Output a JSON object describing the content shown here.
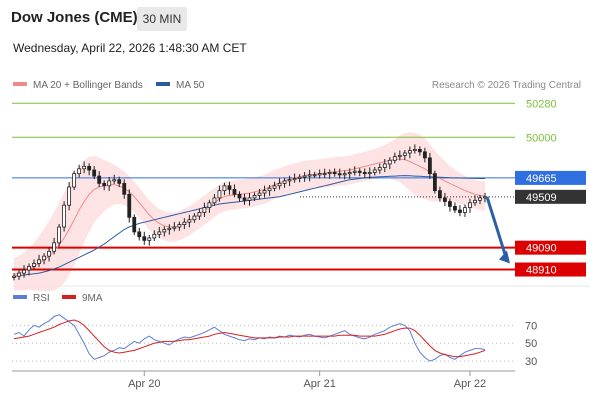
{
  "header": {
    "title": "Dow Jones (CME)",
    "timeframe": "30 MIN",
    "datetime": "Wednesday, April 22, 2026 1:48:30 AM CET"
  },
  "legend": {
    "ma20": "MA 20 + Bollinger Bands",
    "ma50": "MA 50",
    "ma20_color": "#f08a8a",
    "ma50_color": "#2c5aa0",
    "copyright": "Research © 2026 Trading Central"
  },
  "rsi_legend": {
    "rsi": "RSI",
    "ma9": "9MA",
    "rsi_color": "#5b7fd6",
    "ma9_color": "#d62020"
  },
  "chart_data": [
    {
      "type": "candlestick",
      "title": "",
      "ylim": [
        48840,
        50340
      ],
      "x_ticks": [
        "Apr 20",
        "Apr 21",
        "Apr 22"
      ],
      "levels": [
        {
          "value": 50280,
          "label": "50280",
          "color": "#7cbf3c",
          "style": "line",
          "badge": false
        },
        {
          "value": 50000,
          "label": "50000",
          "color": "#7cbf3c",
          "style": "line",
          "badge": false
        },
        {
          "value": 49665,
          "label": "49665",
          "color": "#2f6fdf",
          "style": "line",
          "badge": true
        },
        {
          "value": 49509,
          "label": "49509",
          "color": "#333333",
          "style": "dotted",
          "badge": true
        },
        {
          "value": 49090,
          "label": "49090",
          "color": "#dd0000",
          "style": "thick",
          "badge": true
        },
        {
          "value": 48910,
          "label": "48910",
          "color": "#dd0000",
          "style": "thick",
          "badge": true
        }
      ],
      "price_path": [
        48855,
        48880,
        48905,
        48935,
        48960,
        48990,
        49020,
        49060,
        49130,
        49260,
        49440,
        49590,
        49700,
        49740,
        49760,
        49730,
        49680,
        49620,
        49600,
        49640,
        49650,
        49620,
        49530,
        49340,
        49220,
        49180,
        49150,
        49170,
        49200,
        49220,
        49240,
        49250,
        49260,
        49280,
        49300,
        49320,
        49350,
        49380,
        49420,
        49460,
        49500,
        49560,
        49600,
        49570,
        49530,
        49500,
        49480,
        49500,
        49520,
        49540,
        49560,
        49580,
        49600,
        49620,
        49640,
        49650,
        49660,
        49670,
        49680,
        49690,
        49690,
        49700,
        49700,
        49710,
        49700,
        49690,
        49700,
        49710,
        49720,
        49710,
        49700,
        49710,
        49730,
        49750,
        49780,
        49810,
        49840,
        49850,
        49870,
        49890,
        49900,
        49880,
        49830,
        49700,
        49560,
        49500,
        49470,
        49430,
        49400,
        49380,
        49420,
        49460,
        49480,
        49500,
        49509
      ],
      "ma20": [
        48870,
        48880,
        48895,
        48915,
        48935,
        48960,
        48990,
        49020,
        49060,
        49110,
        49170,
        49240,
        49320,
        49400,
        49470,
        49530,
        49570,
        49590,
        49600,
        49610,
        49610,
        49600,
        49580,
        49550,
        49510,
        49460,
        49410,
        49360,
        49320,
        49290,
        49270,
        49260,
        49260,
        49270,
        49290,
        49310,
        49340,
        49370,
        49400,
        49430,
        49460,
        49490,
        49510,
        49520,
        49525,
        49530,
        49535,
        49540,
        49550,
        49560,
        49570,
        49590,
        49610,
        49625,
        49640,
        49655,
        49665,
        49675,
        49685,
        49690,
        49695,
        49700,
        49705,
        49710,
        49715,
        49720,
        49725,
        49730,
        49740,
        49750,
        49760,
        49770,
        49780,
        49790,
        49800,
        49810,
        49815,
        49820,
        49815,
        49800,
        49780,
        49760,
        49740,
        49710,
        49680,
        49660,
        49640,
        49620,
        49600,
        49580,
        49560,
        49545,
        49530,
        49520,
        49515
      ],
      "ma50": [
        48855,
        48860,
        48865,
        48870,
        48875,
        48880,
        48890,
        48900,
        48915,
        48930,
        48950,
        48970,
        48990,
        49010,
        49030,
        49050,
        49070,
        49095,
        49120,
        49150,
        49180,
        49210,
        49240,
        49260,
        49275,
        49290,
        49300,
        49310,
        49320,
        49330,
        49340,
        49350,
        49360,
        49370,
        49380,
        49390,
        49400,
        49410,
        49420,
        49430,
        49440,
        49450,
        49455,
        49460,
        49465,
        49470,
        49475,
        49480,
        49485,
        49490,
        49495,
        49500,
        49505,
        49510,
        49520,
        49530,
        49540,
        49550,
        49560,
        49570,
        49580,
        49590,
        49600,
        49610,
        49620,
        49630,
        49640,
        49650,
        49655,
        49660,
        49665,
        49670,
        49672,
        49674,
        49676,
        49678,
        49680,
        49682,
        49684,
        49682,
        49680,
        49678,
        49676,
        49674,
        49672,
        49670,
        49668,
        49666,
        49665,
        49664,
        49663,
        49662,
        49661,
        49660,
        49660
      ]
    },
    {
      "type": "line",
      "title": "RSI",
      "ylim": [
        20,
        85
      ],
      "levels": [
        70,
        50,
        30
      ],
      "series": [
        {
          "name": "RSI",
          "color": "#5b7fd6",
          "values": [
            60,
            62,
            58,
            65,
            70,
            68,
            72,
            75,
            80,
            82,
            78,
            74,
            70,
            60,
            50,
            38,
            32,
            34,
            36,
            40,
            42,
            45,
            44,
            48,
            52,
            50,
            55,
            58,
            54,
            52,
            50,
            48,
            52,
            55,
            57,
            56,
            58,
            60,
            62,
            65,
            68,
            64,
            60,
            58,
            56,
            54,
            53,
            55,
            54,
            56,
            55,
            57,
            56,
            58,
            57,
            59,
            58,
            57,
            59,
            60,
            58,
            57,
            56,
            58,
            60,
            62,
            64,
            60,
            58,
            56,
            55,
            57,
            60,
            62,
            64,
            68,
            70,
            72,
            70,
            64,
            50,
            40,
            34,
            30,
            32,
            36,
            38,
            34,
            32,
            36,
            40,
            42,
            44,
            44,
            43
          ]
        },
        {
          "name": "9MA",
          "color": "#d62020",
          "values": [
            55,
            56,
            57,
            58,
            60,
            62,
            64,
            66,
            68,
            71,
            73,
            75,
            76,
            74,
            70,
            64,
            58,
            52,
            46,
            42,
            40,
            39,
            40,
            41,
            42,
            44,
            46,
            48,
            50,
            51,
            52,
            52,
            52,
            53,
            54,
            54,
            55,
            56,
            57,
            58,
            60,
            61,
            62,
            61,
            60,
            59,
            58,
            57,
            56,
            56,
            56,
            56,
            56,
            57,
            57,
            57,
            58,
            58,
            58,
            58,
            58,
            58,
            58,
            58,
            58,
            59,
            59,
            59,
            59,
            58,
            58,
            58,
            58,
            59,
            60,
            62,
            64,
            66,
            67,
            67,
            64,
            59,
            53,
            47,
            42,
            39,
            37,
            36,
            35,
            35,
            36,
            37,
            38,
            40,
            42
          ]
        }
      ]
    }
  ],
  "axis": {
    "rsi_labels": [
      "70",
      "50",
      "30"
    ]
  }
}
